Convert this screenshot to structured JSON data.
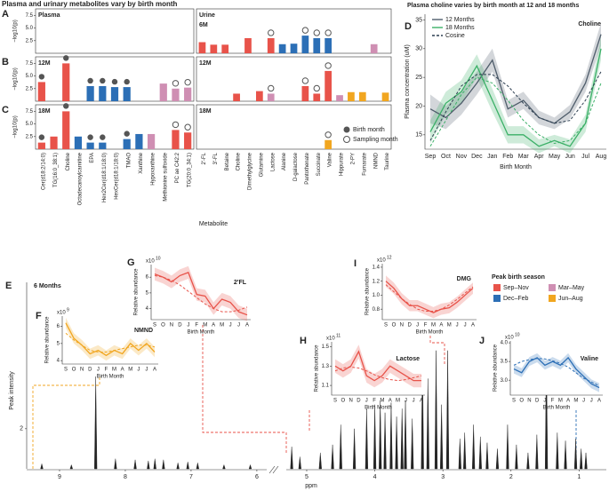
{
  "chart_data": [
    {
      "type": "bar",
      "title": "Plasma and urinary metabolites vary by birth month",
      "xlabel": "Metabolite",
      "ylabel": "−log10(p)",
      "ylim": [
        0,
        8.8
      ],
      "yticks": [
        2.5,
        {
          "value": 5,
          "label": "5.0"
        },
        7.5
      ],
      "sections": [
        {
          "name": "Plasma",
          "categories": [
            "Cer(d18:2/14:0)",
            "TG(16:0_38:1)",
            "Choline",
            "Octadecanoylcarnitine",
            "EPA",
            "Hex2Cer(d18:1/18:0)",
            "HexCer(d18:1/18:0)",
            "TMAO",
            "Xanthine",
            "Hypoxanthine",
            "Methionine sulfoxide",
            "PC ae C42:2",
            "TG(20:0_34:1)"
          ]
        },
        {
          "name": "Urine",
          "categories": [
            "2'-FL",
            "3'-FL",
            "Betaine",
            "Choline",
            "Dimethylglycine",
            "Glutamine",
            "Lactose",
            "Alanine",
            "D-galactose",
            "Pantothenate",
            "Succinate",
            "Valine",
            "Hippurate",
            "2-PY",
            "Fumarate",
            "NMND",
            "Taurine"
          ]
        }
      ],
      "rows": [
        {
          "label": "A",
          "name": "6M",
          "values": [
            null,
            null,
            null,
            null,
            null,
            null,
            null,
            null,
            null,
            null,
            null,
            null,
            null,
            2.2,
            1.7,
            1.7,
            null,
            3.0,
            null,
            3.0,
            1.8,
            1.9,
            3.5,
            3.0,
            3.0,
            null,
            null,
            null,
            1.8,
            null
          ],
          "colors": [
            null,
            null,
            null,
            null,
            null,
            null,
            null,
            null,
            null,
            null,
            null,
            null,
            null,
            "#e8534a",
            "#e8534a",
            "#e8534a",
            null,
            "#e8534a",
            null,
            "#e8534a",
            "#2c6fb6",
            "#2c6fb6",
            "#2c6fb6",
            "#2c6fb6",
            "#2c6fb6",
            null,
            null,
            null,
            "#cf8fb3",
            null
          ],
          "markers": [
            null,
            null,
            null,
            null,
            null,
            null,
            null,
            null,
            null,
            null,
            null,
            null,
            null,
            null,
            null,
            null,
            null,
            null,
            null,
            "sampling",
            null,
            null,
            "sampling",
            "sampling",
            "sampling",
            null,
            null,
            null,
            null,
            null
          ]
        },
        {
          "label": "B",
          "name": "12M",
          "values": [
            3.8,
            null,
            7.5,
            null,
            3.0,
            3.0,
            2.8,
            2.8,
            null,
            null,
            3.5,
            2.5,
            2.7,
            null,
            null,
            null,
            1.5,
            null,
            2.0,
            1.5,
            null,
            null,
            3.0,
            1.5,
            6.0,
            1.2,
            1.8,
            1.8,
            null,
            1.7
          ],
          "colors": [
            "#e8534a",
            null,
            "#e8534a",
            null,
            "#2c6fb6",
            "#2c6fb6",
            "#2c6fb6",
            "#2c6fb6",
            null,
            null,
            "#cf8fb3",
            "#cf8fb3",
            "#cf8fb3",
            null,
            null,
            null,
            "#e8534a",
            null,
            "#e8534a",
            "#cf8fb3",
            null,
            null,
            "#e8534a",
            "#e8534a",
            "#e8534a",
            "#cf8fb3",
            "#f1a620",
            "#f1a620",
            null,
            "#f1a620"
          ],
          "markers": [
            "birth",
            null,
            "birth",
            null,
            "birth",
            "birth",
            "birth",
            "birth",
            null,
            null,
            null,
            "sampling",
            "sampling",
            null,
            null,
            null,
            null,
            null,
            null,
            "sampling",
            null,
            null,
            "sampling",
            "sampling",
            "sampling",
            null,
            null,
            null,
            null,
            null
          ]
        },
        {
          "label": "C",
          "name": "18M",
          "values": [
            1.3,
            2.5,
            7.5,
            2.5,
            1.3,
            1.3,
            null,
            2.0,
            3.0,
            3.0,
            null,
            3.8,
            3.3,
            null,
            null,
            null,
            null,
            null,
            null,
            null,
            null,
            null,
            null,
            null,
            1.8,
            null,
            null,
            null,
            null,
            null
          ],
          "colors": [
            "#e8534a",
            "#e8534a",
            "#e8534a",
            "#2c6fb6",
            "#2c6fb6",
            "#2c6fb6",
            null,
            "#2c6fb6",
            "#2c6fb6",
            "#cf8fb3",
            null,
            "#e8534a",
            "#e8534a",
            null,
            null,
            null,
            null,
            null,
            null,
            null,
            null,
            null,
            null,
            null,
            "#f1a620",
            null,
            null,
            null,
            null,
            null
          ],
          "markers": [
            "birth",
            null,
            "birth",
            null,
            "birth",
            "birth",
            null,
            "birth",
            null,
            null,
            null,
            "sampling",
            "sampling",
            null,
            null,
            null,
            null,
            null,
            null,
            null,
            null,
            null,
            null,
            null,
            "sampling",
            null,
            null,
            null,
            null,
            null
          ]
        }
      ],
      "marker_legend": [
        {
          "name": "Birth month",
          "kind": "birth"
        },
        {
          "name": "Sampling month",
          "kind": "sampling"
        }
      ]
    },
    {
      "type": "line",
      "label": "D",
      "title": "Plasma choline varies by birth month at 12 and 18 months",
      "annotation": "Choline",
      "xlabel": "Birth Month",
      "ylabel": "Plasma concentration (uM)",
      "categories": [
        "Sep",
        "Oct",
        "Nov",
        "Dec",
        "Jan",
        "Feb",
        "Mar",
        "Apr",
        "May",
        "Jun",
        "Jul",
        "Aug"
      ],
      "ylim": [
        12.5,
        36
      ],
      "yticks": [
        15,
        20,
        25,
        30,
        35
      ],
      "series": [
        {
          "name": "12 Months",
          "color": "#4f5d6b",
          "values": [
            19.5,
            18,
            20.5,
            24,
            28,
            19.5,
            21,
            18,
            17,
            19,
            24,
            32.5
          ],
          "errors": [
            2.5,
            2,
            2,
            2,
            2,
            1.5,
            1.5,
            1.2,
            1,
            1.2,
            1.5,
            2
          ]
        },
        {
          "name": "18 Months",
          "color": "#3bb067",
          "values": [
            15.5,
            20.5,
            22.5,
            27,
            21,
            15,
            15,
            13,
            14,
            13,
            17,
            30
          ],
          "errors": [
            2,
            2,
            2,
            2,
            2,
            1.5,
            1.5,
            1.2,
            1,
            1.2,
            1.5,
            2
          ]
        },
        {
          "name": "Cosine",
          "color": "#2c3e50",
          "dash": true,
          "values": [
            14,
            19,
            23.5,
            25.5,
            25.5,
            23.5,
            20.5,
            18,
            17,
            17.5,
            21,
            26
          ]
        },
        {
          "color": "#3bb067",
          "dash": true,
          "values": [
            13,
            17.5,
            22,
            25,
            24,
            21,
            17.5,
            15,
            13.5,
            14,
            17,
            24
          ]
        }
      ]
    },
    {
      "type": "spectrum",
      "label": "E",
      "subtitle": "6 Months",
      "ylabel": "Peak intensity",
      "xlabel": "ppm",
      "color": "#222",
      "xlim": [
        [
          9.5,
          5.85
        ],
        [
          5.3,
          0.6
        ]
      ],
      "xticks": [
        9,
        8,
        7,
        6,
        5,
        4,
        3,
        2,
        1
      ],
      "ylim": [
        0,
        9.3
      ],
      "yticks": [
        2
      ],
      "x": [
        9.27,
        8.82,
        8.45,
        8.15,
        7.85,
        7.65,
        7.55,
        7.42,
        7.2,
        7.05,
        6.9,
        6.5,
        6.1,
        5.22,
        5.1,
        4.8,
        4.62,
        4.5,
        4.3,
        4.12,
        4.0,
        3.92,
        3.85,
        3.76,
        3.68,
        3.6,
        3.55,
        3.45,
        3.3,
        3.22,
        3.1,
        3.02,
        2.93,
        2.75,
        2.68,
        2.55,
        2.45,
        2.35,
        2.2,
        2.05,
        1.92,
        1.75,
        1.62,
        1.48,
        1.32,
        1.2,
        1.05,
        0.97,
        0.9
      ],
      "values": [
        0.25,
        0.2,
        4.6,
        0.5,
        0.45,
        0.4,
        0.5,
        0.45,
        0.3,
        0.35,
        0.3,
        0.2,
        0.2,
        1.1,
        0.6,
        0.8,
        1.2,
        2.2,
        2.0,
        3.0,
        3.2,
        3.4,
        2.8,
        3.3,
        2.6,
        3.0,
        3.4,
        2.5,
        5.9,
        4.5,
        5.9,
        3.2,
        5.9,
        1.5,
        1.8,
        2.2,
        1.6,
        1.3,
        1.0,
        2.2,
        1.2,
        0.8,
        1.7,
        5.9,
        1.8,
        1.4,
        1.5,
        1.0,
        0.8
      ],
      "legend": {
        "title": "Peak birth season",
        "items": [
          {
            "name": "Sep–Nov",
            "color": "#e8534a"
          },
          {
            "name": "Dec–Feb",
            "color": "#2c6fb6"
          },
          {
            "name": "Mar–May",
            "color": "#cf8fb3"
          },
          {
            "name": "Jun–Aug",
            "color": "#f1a620"
          }
        ]
      }
    },
    {
      "type": "line",
      "label": "F",
      "title": "NMND",
      "xlabel": "Birth Month",
      "ylabel": "Relative abundance",
      "scale_base": "x10",
      "scale_exp": "9",
      "categories": [
        "S",
        "O",
        "N",
        "D",
        "J",
        "F",
        "M",
        "A",
        "M",
        "J",
        "J",
        "A"
      ],
      "ylim": [
        3.8,
        6.6
      ],
      "yticks": [
        4,
        5,
        6
      ],
      "series": [
        {
          "color": "#f1a620",
          "values": [
            6.2,
            5.3,
            4.9,
            4.4,
            4.6,
            4.3,
            4.6,
            4.4,
            5.0,
            4.6,
            5.0,
            4.5
          ],
          "errors": [
            0.3,
            0.3,
            0.3,
            0.3,
            0.3,
            0.3,
            0.3,
            0.3,
            0.3,
            0.3,
            0.3,
            0.3
          ]
        },
        {
          "color": "#f1a620",
          "dash": true,
          "values": [
            5.6,
            5.2,
            4.9,
            4.6,
            4.5,
            4.5,
            4.6,
            4.7,
            4.8,
            4.9,
            4.9,
            4.8
          ]
        }
      ]
    },
    {
      "type": "line",
      "label": "G",
      "title": "2'FL",
      "xlabel": "Birth Month",
      "ylabel": "Relative abundance",
      "scale_base": "x10",
      "scale_exp": "10",
      "categories": [
        "S",
        "O",
        "N",
        "D",
        "J",
        "F",
        "M",
        "A",
        "M",
        "J",
        "J",
        "A"
      ],
      "ylim": [
        3.3,
        6.8
      ],
      "yticks": [
        4,
        5,
        6
      ],
      "series": [
        {
          "color": "#e8534a",
          "values": [
            6.2,
            6.0,
            5.7,
            6.1,
            6.3,
            4.9,
            4.8,
            4.0,
            4.6,
            4.4,
            3.8,
            3.6
          ],
          "errors": [
            0.4,
            0.4,
            0.4,
            0.4,
            0.4,
            0.4,
            0.4,
            0.4,
            0.4,
            0.4,
            0.4,
            0.4
          ]
        },
        {
          "color": "#e8534a",
          "dash": true,
          "values": [
            6.1,
            6.0,
            5.8,
            5.5,
            5.1,
            4.7,
            4.3,
            4.0,
            3.8,
            3.8,
            3.9,
            4.1
          ]
        }
      ]
    },
    {
      "type": "line",
      "label": "H",
      "title": "Lactose",
      "xlabel": "Birth Month",
      "ylabel": "Relative abundance",
      "scale_base": "x10",
      "scale_exp": "11",
      "categories": [
        "S",
        "O",
        "N",
        "D",
        "J",
        "F",
        "M",
        "A",
        "M",
        "J",
        "J",
        "A"
      ],
      "ylim": [
        1.0,
        1.55
      ],
      "yticks": [
        1.1,
        1.3,
        1.5
      ],
      "series": [
        {
          "color": "#e8534a",
          "values": [
            1.3,
            1.25,
            1.3,
            1.45,
            1.2,
            1.15,
            1.2,
            1.3,
            1.25,
            1.2,
            1.15,
            1.15
          ],
          "errors": [
            0.07,
            0.07,
            0.07,
            0.07,
            0.07,
            0.07,
            0.07,
            0.07,
            0.07,
            0.07,
            0.07,
            0.07
          ]
        },
        {
          "color": "#e8534a",
          "dash": true,
          "values": [
            1.25,
            1.28,
            1.29,
            1.28,
            1.25,
            1.21,
            1.18,
            1.16,
            1.15,
            1.16,
            1.18,
            1.2
          ]
        }
      ]
    },
    {
      "type": "line",
      "label": "I",
      "title": "DMG",
      "xlabel": "Birth Month",
      "ylabel": "Relative abundance",
      "scale_base": "x10",
      "scale_exp": "12",
      "categories": [
        "S",
        "O",
        "N",
        "D",
        "J",
        "F",
        "M",
        "A",
        "M",
        "J",
        "J",
        "A"
      ],
      "ylim": [
        0.65,
        1.45
      ],
      "yticks": [
        0.8,
        {
          "value": 1,
          "label": "1.0"
        },
        1.2,
        1.4
      ],
      "series": [
        {
          "color": "#e8534a",
          "values": [
            1.2,
            1.1,
            0.95,
            0.85,
            0.85,
            0.8,
            0.75,
            0.8,
            0.82,
            0.9,
            1.0,
            1.1
          ],
          "errors": [
            0.08,
            0.08,
            0.08,
            0.08,
            0.08,
            0.08,
            0.08,
            0.08,
            0.08,
            0.08,
            0.08,
            0.08
          ]
        },
        {
          "color": "#e8534a",
          "dash": true,
          "values": [
            1.15,
            1.05,
            0.95,
            0.87,
            0.8,
            0.77,
            0.77,
            0.8,
            0.86,
            0.94,
            1.03,
            1.12
          ]
        }
      ]
    },
    {
      "type": "line",
      "label": "J",
      "title": "Valine",
      "xlabel": "Birth Month",
      "ylabel": "Relative abundance",
      "scale_base": "x10",
      "scale_exp": "10",
      "categories": [
        "S",
        "O",
        "N",
        "D",
        "J",
        "F",
        "M",
        "A",
        "M",
        "J",
        "J",
        "A"
      ],
      "ylim": [
        2.6,
        4.05
      ],
      "yticks": [
        {
          "value": 3,
          "label": "3.0"
        },
        3.5,
        {
          "value": 4,
          "label": "4.0"
        }
      ],
      "series": [
        {
          "color": "#2c6fb6",
          "values": [
            3.3,
            3.2,
            3.5,
            3.6,
            3.4,
            3.5,
            3.4,
            3.6,
            3.3,
            3.1,
            2.9,
            2.8
          ],
          "errors": [
            0.12,
            0.12,
            0.12,
            0.12,
            0.12,
            0.12,
            0.12,
            0.12,
            0.12,
            0.12,
            0.12,
            0.12
          ]
        },
        {
          "color": "#2c6fb6",
          "dash": true,
          "values": [
            3.4,
            3.5,
            3.55,
            3.58,
            3.57,
            3.52,
            3.45,
            3.35,
            3.2,
            3.05,
            2.95,
            2.85
          ]
        }
      ]
    }
  ]
}
